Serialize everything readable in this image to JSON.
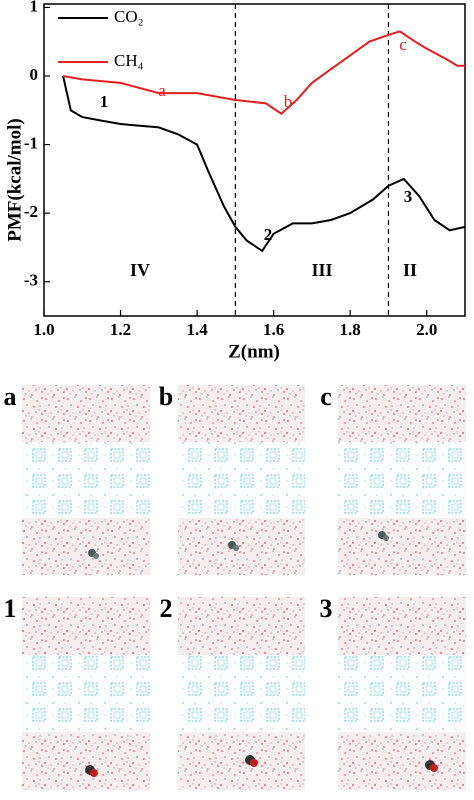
{
  "chart_data": {
    "type": "line",
    "xlabel": "Z(nm)",
    "ylabel": "PMF(kcal/mol)",
    "xlim": [
      1.0,
      2.1
    ],
    "ylim": [
      -3.5,
      1.05
    ],
    "xticks": [
      {
        "value": 1,
        "label": "1.0"
      },
      1.2,
      1.4,
      1.6,
      1.8,
      {
        "value": 2,
        "label": "2.0"
      }
    ],
    "yticks": [
      1,
      0,
      -1,
      -2,
      -3
    ],
    "vlines": [
      1.5,
      1.9
    ],
    "series": [
      {
        "name": "CO₂",
        "color": "#000000",
        "x": [
          1.05,
          1.07,
          1.1,
          1.15,
          1.2,
          1.3,
          1.35,
          1.4,
          1.43,
          1.47,
          1.5,
          1.53,
          1.57,
          1.6,
          1.65,
          1.7,
          1.75,
          1.8,
          1.86,
          1.9,
          1.94,
          1.98,
          2.02,
          2.06,
          2.1
        ],
        "values": [
          0,
          -0.5,
          -0.6,
          -0.65,
          -0.7,
          -0.75,
          -0.85,
          -1.0,
          -1.4,
          -1.9,
          -2.2,
          -2.4,
          -2.55,
          -2.3,
          -2.15,
          -2.15,
          -2.1,
          -2.0,
          -1.8,
          -1.6,
          -1.5,
          -1.75,
          -2.1,
          -2.25,
          -2.2
        ]
      },
      {
        "name": "CH₄",
        "color": "#e02020",
        "x": [
          1.05,
          1.1,
          1.2,
          1.3,
          1.4,
          1.5,
          1.58,
          1.62,
          1.66,
          1.7,
          1.75,
          1.8,
          1.85,
          1.9,
          1.93,
          1.97,
          2.0,
          2.05,
          2.08,
          2.1
        ],
        "values": [
          0,
          -0.05,
          -0.1,
          -0.25,
          -0.25,
          -0.35,
          -0.4,
          -0.55,
          -0.35,
          -0.1,
          0.1,
          0.3,
          0.5,
          0.6,
          0.65,
          0.5,
          0.4,
          0.25,
          0.15,
          0.15
        ]
      }
    ],
    "annotations": [
      {
        "text": "1",
        "color": "#000000"
      },
      {
        "text": "2",
        "color": "#000000"
      },
      {
        "text": "3",
        "color": "#000000"
      },
      {
        "text": "a",
        "color": "#e02020"
      },
      {
        "text": "b",
        "color": "#e02020"
      },
      {
        "text": "c",
        "color": "#e02020"
      },
      {
        "text": "IV",
        "color": "#000000"
      },
      {
        "text": "III",
        "color": "#000000"
      },
      {
        "text": "II",
        "color": "#000000"
      }
    ]
  },
  "panels": [
    "a",
    "b",
    "c",
    "1",
    "2",
    "3"
  ]
}
